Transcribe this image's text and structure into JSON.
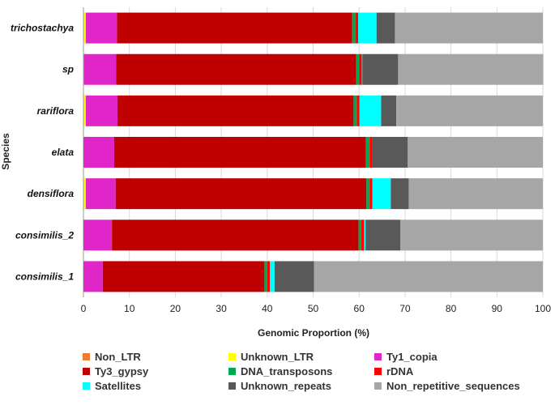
{
  "chart_data": {
    "type": "bar",
    "orientation": "horizontal",
    "stacked": true,
    "title": "",
    "xlabel": "Genomic Proportion (%)",
    "ylabel": "Species",
    "xlim": [
      0,
      100
    ],
    "xticks": [
      0,
      10,
      20,
      30,
      40,
      50,
      60,
      70,
      80,
      90,
      100
    ],
    "categories": [
      "trichostachya",
      "sp",
      "rariflora",
      "elata",
      "densiflora",
      "consimilis_2",
      "consimilis_1"
    ],
    "series": [
      {
        "name": "Non_LTR",
        "color": "#ED7D31",
        "values": [
          0.1,
          0.1,
          0.1,
          0.0,
          0.1,
          0.0,
          0.0
        ]
      },
      {
        "name": "Unknown_LTR",
        "color": "#FFFF00",
        "values": [
          0.4,
          0.0,
          0.4,
          0.0,
          0.4,
          0.0,
          0.0
        ]
      },
      {
        "name": "Ty1_copia",
        "color": "#E026C8",
        "values": [
          6.8,
          7.0,
          6.9,
          6.7,
          6.5,
          6.2,
          4.2
        ]
      },
      {
        "name": "Ty3_gypsy",
        "color": "#C00000",
        "values": [
          51.2,
          52.3,
          51.4,
          54.8,
          54.6,
          53.7,
          35.2
        ]
      },
      {
        "name": "DNA_transposons",
        "color": "#00A850",
        "values": [
          0.7,
          0.6,
          0.7,
          0.8,
          0.7,
          0.6,
          0.6
        ]
      },
      {
        "name": "rDNA",
        "color": "#FF0000",
        "values": [
          0.6,
          0.6,
          0.6,
          0.6,
          0.6,
          0.6,
          0.6
        ]
      },
      {
        "name": "Satellites",
        "color": "#00FFFF",
        "values": [
          4.0,
          0.1,
          4.7,
          0.0,
          4.0,
          0.3,
          1.0
        ]
      },
      {
        "name": "Unknown_repeats",
        "color": "#595959",
        "values": [
          4.0,
          7.8,
          3.3,
          7.7,
          3.9,
          7.6,
          8.6
        ]
      },
      {
        "name": "Non_repetitive_sequences",
        "color": "#A6A6A6",
        "values": [
          32.2,
          31.6,
          31.9,
          29.4,
          29.2,
          31.0,
          49.8
        ]
      }
    ],
    "legend_position": "bottom",
    "grid": true
  }
}
